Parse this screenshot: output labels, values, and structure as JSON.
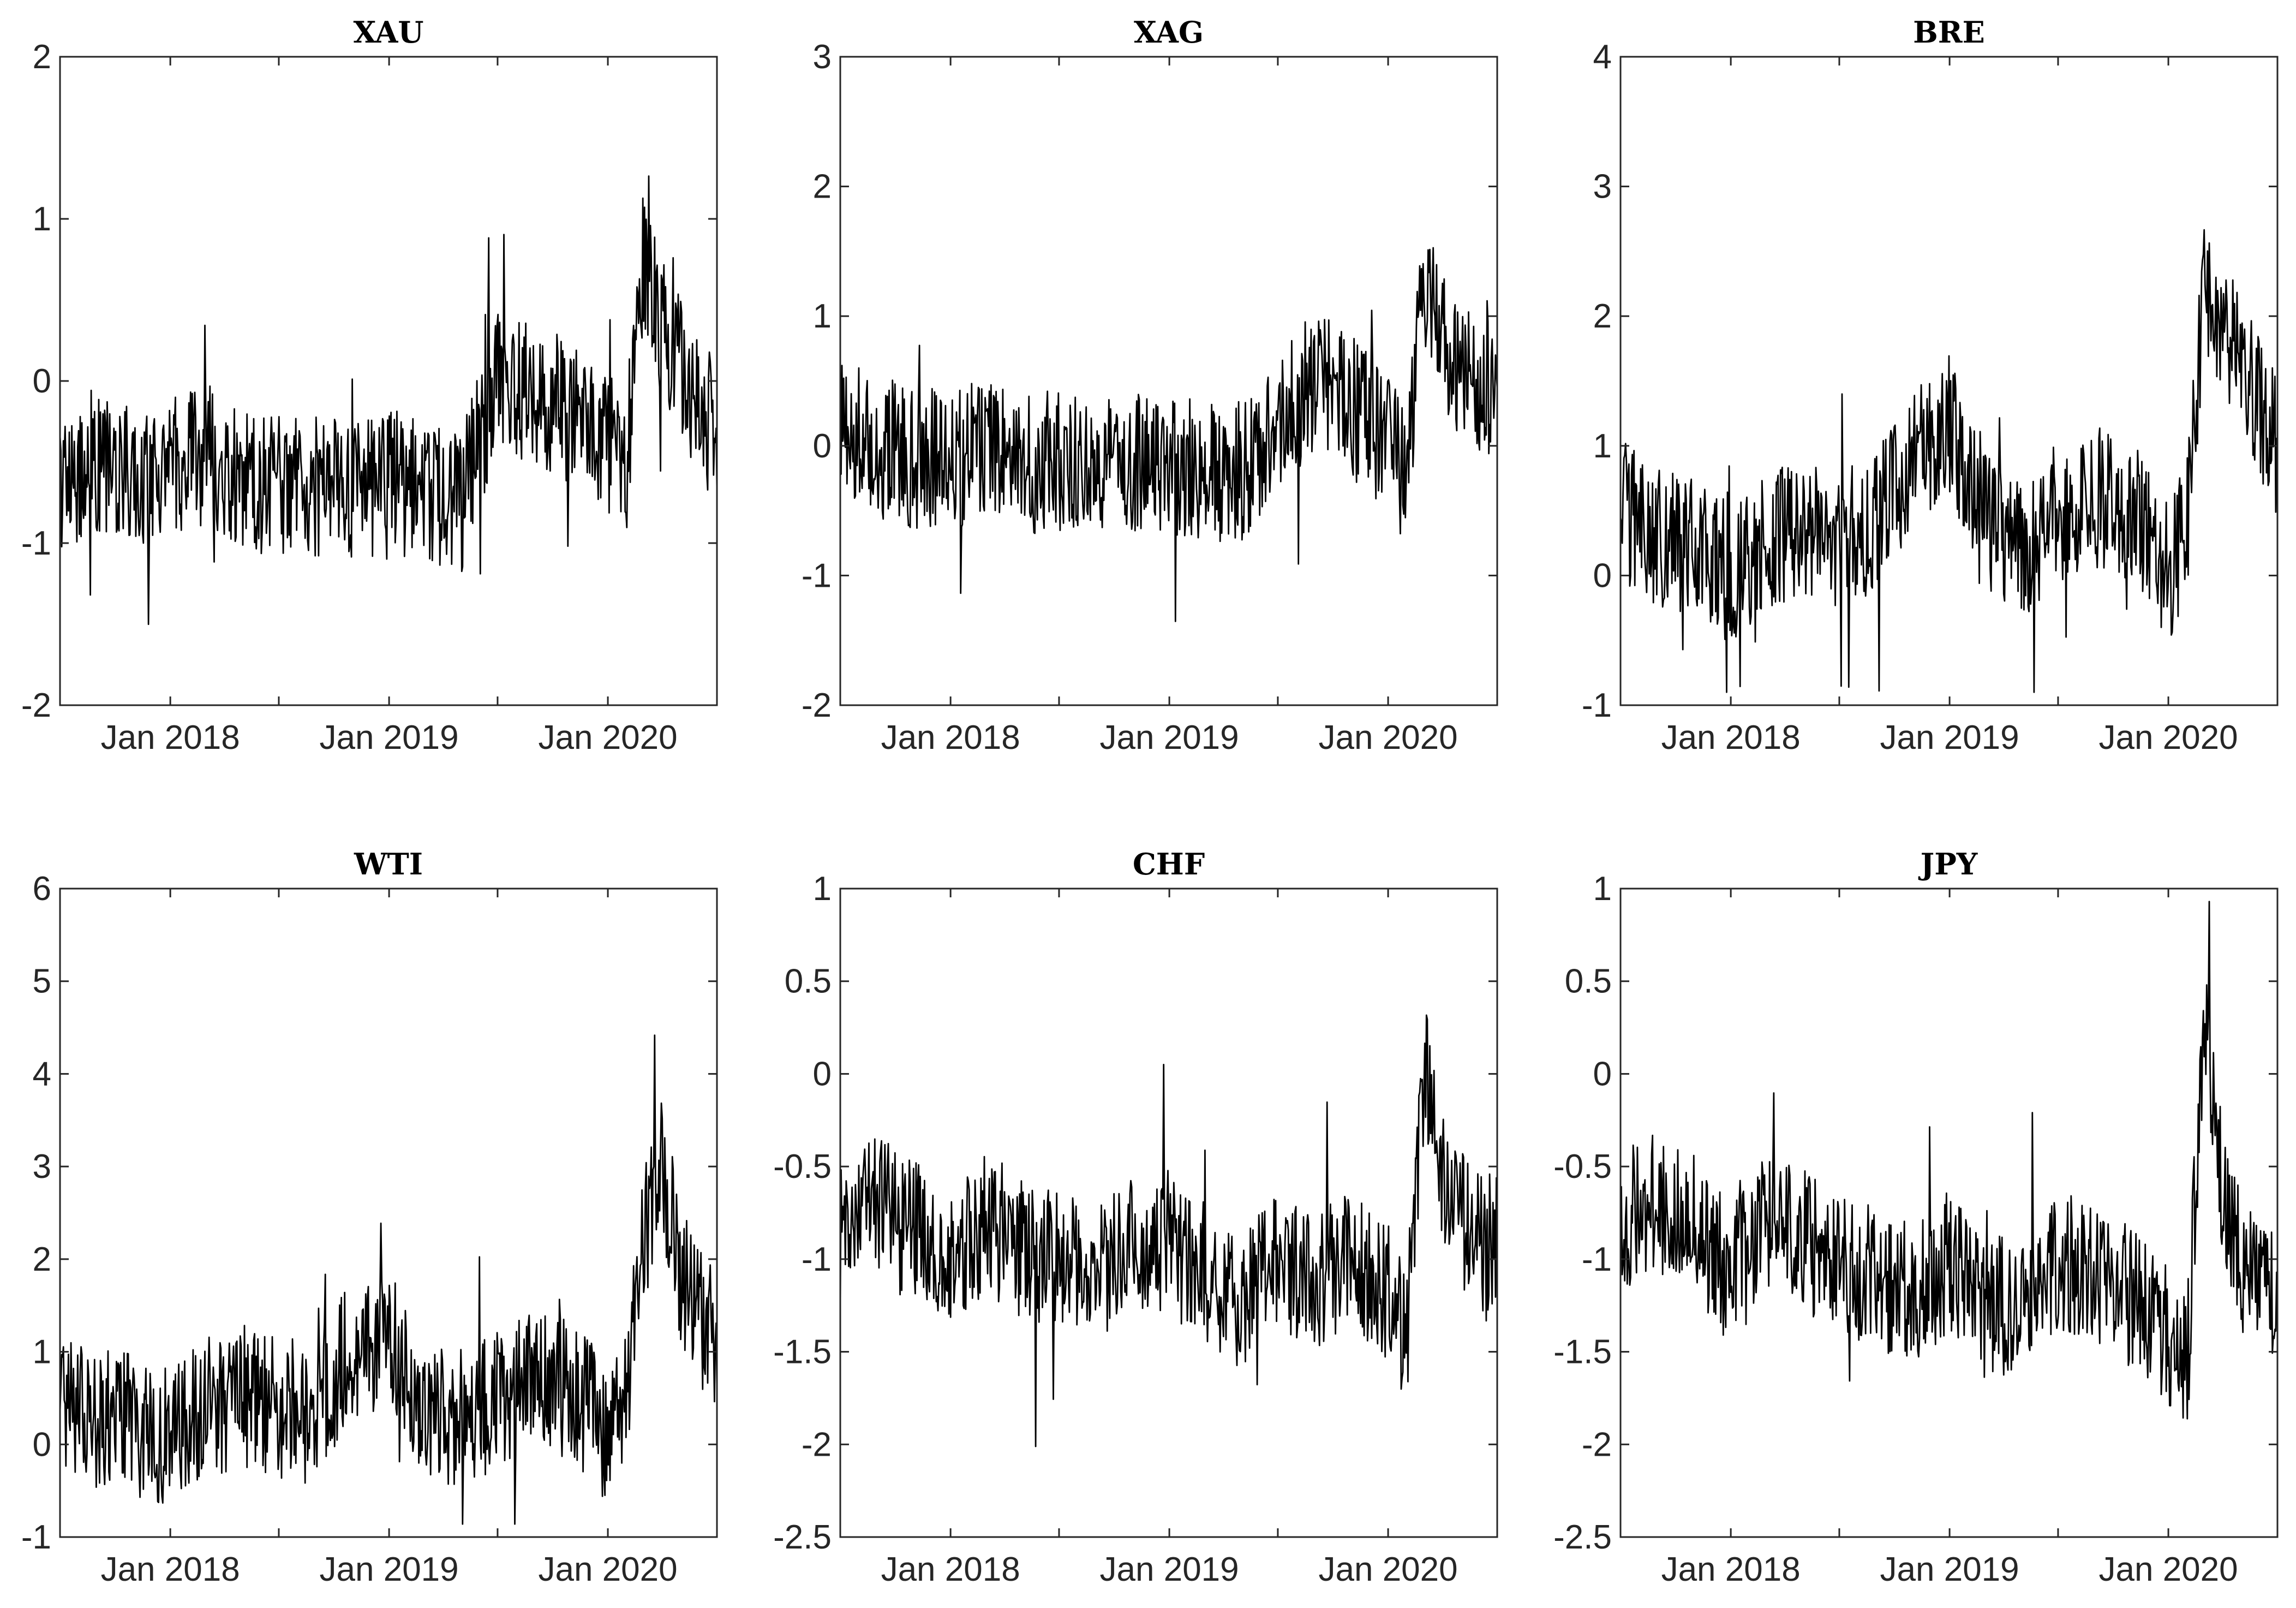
{
  "chart_data": [
    {
      "type": "line",
      "title": "XAU",
      "xlim": [
        "2017-07-01",
        "2020-07-01"
      ],
      "xticks": [
        "2018-01-01",
        "2019-01-01",
        "2020-01-01"
      ],
      "xtick_labels": [
        "Jan 2018",
        "Jan 2019",
        "Jan 2020"
      ],
      "ylim": [
        -2,
        2
      ],
      "ytick_values": [
        -2,
        -1,
        0,
        1,
        2
      ],
      "ytick_labels": [
        "-2",
        "-1",
        "0",
        "1",
        "2"
      ],
      "series": [
        {
          "x": [
            "2017-07-01",
            "2017-09-01",
            "2017-11-01",
            "2018-01-01",
            "2018-03-01",
            "2018-05-01",
            "2018-07-01",
            "2018-09-01",
            "2018-11-01",
            "2019-01-01",
            "2019-03-01",
            "2019-05-01",
            "2019-07-01",
            "2019-09-01",
            "2019-11-01",
            "2020-01-01",
            "2020-02-01",
            "2020-03-01",
            "2020-04-01",
            "2020-05-01",
            "2020-06-01",
            "2020-07-01"
          ],
          "y": [
            -0.6,
            -0.55,
            -0.6,
            -0.5,
            -0.45,
            -0.6,
            -0.65,
            -0.65,
            -0.7,
            -0.6,
            -0.7,
            -0.75,
            0.0,
            -0.1,
            -0.2,
            -0.4,
            -0.5,
            0.8,
            0.3,
            0.1,
            -0.2,
            -0.3
          ]
        }
      ]
    },
    {
      "type": "line",
      "title": "XAG",
      "xlim": [
        "2017-07-01",
        "2020-07-01"
      ],
      "xticks": [
        "2018-01-01",
        "2019-01-01",
        "2020-01-01"
      ],
      "xtick_labels": [
        "Jan 2018",
        "Jan 2019",
        "Jan 2020"
      ],
      "ylim": [
        -2,
        3
      ],
      "ytick_values": [
        -2,
        -1,
        0,
        1,
        2,
        3
      ],
      "ytick_labels": [
        "-2",
        "-1",
        "0",
        "1",
        "2",
        "3"
      ],
      "series": [
        {
          "x": [
            "2017-07-01",
            "2017-09-01",
            "2017-11-01",
            "2018-01-01",
            "2018-03-01",
            "2018-05-01",
            "2018-07-01",
            "2018-09-01",
            "2018-11-01",
            "2019-01-01",
            "2019-03-01",
            "2019-05-01",
            "2019-07-01",
            "2019-09-01",
            "2019-11-01",
            "2020-01-01",
            "2020-02-01",
            "2020-03-01",
            "2020-04-01",
            "2020-05-01",
            "2020-06-01",
            "2020-07-01"
          ],
          "y": [
            0.2,
            0.0,
            -0.1,
            -0.1,
            -0.05,
            -0.15,
            -0.1,
            -0.1,
            -0.15,
            -0.15,
            -0.2,
            -0.2,
            0.2,
            0.5,
            0.3,
            0.0,
            -0.2,
            1.2,
            0.8,
            0.6,
            0.5,
            0.4
          ]
        }
      ]
    },
    {
      "type": "line",
      "title": "BRE",
      "xlim": [
        "2017-07-01",
        "2020-07-01"
      ],
      "xticks": [
        "2018-01-01",
        "2019-01-01",
        "2020-01-01"
      ],
      "xtick_labels": [
        "Jan 2018",
        "Jan 2019",
        "Jan 2020"
      ],
      "ylim": [
        -1,
        4
      ],
      "ytick_values": [
        -1,
        0,
        1,
        2,
        3,
        4
      ],
      "ytick_labels": [
        "-1",
        "0",
        "1",
        "2",
        "3",
        "4"
      ],
      "series": [
        {
          "x": [
            "2017-07-01",
            "2017-09-01",
            "2017-11-01",
            "2018-01-01",
            "2018-03-01",
            "2018-05-01",
            "2018-07-01",
            "2018-09-01",
            "2018-11-01",
            "2019-01-01",
            "2019-03-01",
            "2019-05-01",
            "2019-07-01",
            "2019-09-01",
            "2019-11-01",
            "2020-01-01",
            "2020-02-01",
            "2020-03-01",
            "2020-04-01",
            "2020-05-01",
            "2020-06-01",
            "2020-07-01"
          ],
          "y": [
            0.5,
            0.3,
            0.2,
            0.0,
            0.3,
            0.35,
            0.3,
            0.4,
            0.9,
            1.2,
            0.4,
            0.2,
            0.5,
            0.6,
            0.5,
            0.0,
            0.4,
            2.2,
            2.0,
            1.6,
            1.3,
            1.0
          ]
        }
      ]
    },
    {
      "type": "line",
      "title": "WTI",
      "xlim": [
        "2017-07-01",
        "2020-07-01"
      ],
      "xticks": [
        "2018-01-01",
        "2019-01-01",
        "2020-01-01"
      ],
      "xtick_labels": [
        "Jan 2018",
        "Jan 2019",
        "Jan 2020"
      ],
      "ylim": [
        -1,
        6
      ],
      "ytick_values": [
        -1,
        0,
        1,
        2,
        3,
        4,
        5,
        6
      ],
      "ytick_labels": [
        "-1",
        "0",
        "1",
        "2",
        "3",
        "4",
        "5",
        "6"
      ],
      "series": [
        {
          "x": [
            "2017-07-01",
            "2017-09-01",
            "2017-11-01",
            "2018-01-01",
            "2018-03-01",
            "2018-05-01",
            "2018-07-01",
            "2018-09-01",
            "2018-11-01",
            "2019-01-01",
            "2019-03-01",
            "2019-05-01",
            "2019-07-01",
            "2019-09-01",
            "2019-11-01",
            "2020-01-01",
            "2020-02-01",
            "2020-03-01",
            "2020-04-01",
            "2020-05-01",
            "2020-06-01",
            "2020-07-01"
          ],
          "y": [
            0.5,
            0.3,
            0.2,
            0.1,
            0.4,
            0.45,
            0.4,
            0.4,
            1.0,
            1.1,
            0.4,
            0.3,
            0.5,
            0.7,
            0.6,
            0.1,
            0.5,
            2.2,
            3.0,
            1.8,
            1.4,
            1.2
          ]
        }
      ]
    },
    {
      "type": "line",
      "title": "CHF",
      "xlim": [
        "2017-07-01",
        "2020-07-01"
      ],
      "xticks": [
        "2018-01-01",
        "2019-01-01",
        "2020-01-01"
      ],
      "xtick_labels": [
        "Jan 2018",
        "Jan 2019",
        "Jan 2020"
      ],
      "ylim": [
        -2.5,
        1
      ],
      "ytick_values": [
        -2.5,
        -2,
        -1.5,
        -1,
        -0.5,
        0,
        0.5,
        1
      ],
      "ytick_labels": [
        "-2.5",
        "-2",
        "-1.5",
        "-1",
        "-0.5",
        "0",
        "0.5",
        "1"
      ],
      "series": [
        {
          "x": [
            "2017-07-01",
            "2017-09-01",
            "2017-11-01",
            "2018-01-01",
            "2018-03-01",
            "2018-05-01",
            "2018-07-01",
            "2018-09-01",
            "2018-11-01",
            "2019-01-01",
            "2019-03-01",
            "2019-05-01",
            "2019-07-01",
            "2019-09-01",
            "2019-11-01",
            "2020-01-01",
            "2020-02-01",
            "2020-03-01",
            "2020-04-01",
            "2020-05-01",
            "2020-06-01",
            "2020-07-01"
          ],
          "y": [
            -0.9,
            -0.7,
            -0.85,
            -1.0,
            -0.8,
            -0.95,
            -1.0,
            -1.1,
            -0.95,
            -0.9,
            -1.2,
            -1.2,
            -1.0,
            -1.15,
            -1.0,
            -1.2,
            -1.4,
            0.0,
            -0.5,
            -0.8,
            -0.9,
            -0.9
          ]
        }
      ]
    },
    {
      "type": "line",
      "title": "JPY",
      "xlim": [
        "2017-07-01",
        "2020-07-01"
      ],
      "xticks": [
        "2018-01-01",
        "2019-01-01",
        "2020-01-01"
      ],
      "xtick_labels": [
        "Jan 2018",
        "Jan 2019",
        "Jan 2020"
      ],
      "ylim": [
        -2.5,
        1
      ],
      "ytick_values": [
        -2.5,
        -2,
        -1.5,
        -1,
        -0.5,
        0,
        0.5,
        1
      ],
      "ytick_labels": [
        "-2.5",
        "-2",
        "-1.5",
        "-1",
        "-0.5",
        "0",
        "0.5",
        "1"
      ],
      "series": [
        {
          "x": [
            "2017-07-01",
            "2017-09-01",
            "2017-11-01",
            "2018-01-01",
            "2018-03-01",
            "2018-05-01",
            "2018-07-01",
            "2018-09-01",
            "2018-11-01",
            "2019-01-01",
            "2019-03-01",
            "2019-05-01",
            "2019-07-01",
            "2019-09-01",
            "2019-11-01",
            "2020-01-01",
            "2020-02-01",
            "2020-03-01",
            "2020-04-01",
            "2020-05-01",
            "2020-06-01",
            "2020-07-01"
          ],
          "y": [
            -0.8,
            -0.7,
            -0.8,
            -1.1,
            -0.8,
            -0.9,
            -1.0,
            -1.1,
            -1.2,
            -1.0,
            -1.3,
            -1.2,
            -1.0,
            -1.1,
            -1.2,
            -1.4,
            -1.6,
            0.3,
            -0.6,
            -1.0,
            -1.1,
            -1.2
          ]
        }
      ]
    }
  ]
}
